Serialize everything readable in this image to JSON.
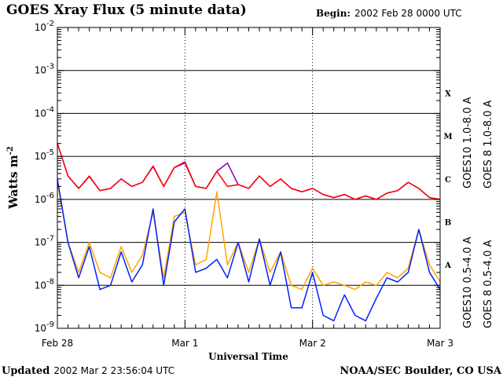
{
  "header": {
    "title": "GOES Xray Flux (5 minute data)",
    "begin_label": "Begin:",
    "begin_value": "2002 Feb 28 0000 UTC"
  },
  "footer": {
    "updated_label": "Updated",
    "updated_value": "2002 Mar  2 23:56:04 UTC",
    "credit": "NOAA/SEC Boulder, CO USA"
  },
  "colors": {
    "goes8_long": "#ff0000",
    "goes10_long": "#8000c0",
    "goes10_short": "#ffa500",
    "goes8_short": "#0020ff"
  },
  "chart_data": {
    "type": "line",
    "title": "GOES Xray Flux (5 minute data)",
    "xlabel": "Universal Time",
    "ylabel": "Watts m-2",
    "ylabel_base": "Watts m",
    "ylabel_exp": "-2",
    "yscale": "log",
    "ylim": [
      1e-09,
      0.01
    ],
    "yticks": [
      {
        "base": "10",
        "exp": "-2",
        "value": 0.01
      },
      {
        "base": "10",
        "exp": "-3",
        "value": 0.001
      },
      {
        "base": "10",
        "exp": "-4",
        "value": 0.0001
      },
      {
        "base": "10",
        "exp": "-5",
        "value": 1e-05
      },
      {
        "base": "10",
        "exp": "-6",
        "value": 1e-06
      },
      {
        "base": "10",
        "exp": "-7",
        "value": 1e-07
      },
      {
        "base": "10",
        "exp": "-8",
        "value": 1e-08
      },
      {
        "base": "10",
        "exp": "-9",
        "value": 1e-09
      }
    ],
    "xlim_hours": [
      0,
      72
    ],
    "xticks": [
      {
        "label": "Feb 28",
        "hour": 0
      },
      {
        "label": "Mar 1",
        "hour": 24
      },
      {
        "label": "Mar 2",
        "hour": 48
      },
      {
        "label": "Mar 3",
        "hour": 72
      }
    ],
    "flare_classes": [
      {
        "label": "X",
        "value": 0.0003
      },
      {
        "label": "M",
        "value": 3e-05
      },
      {
        "label": "C",
        "value": 3e-06
      },
      {
        "label": "B",
        "value": 3e-07
      },
      {
        "label": "A",
        "value": 3e-08
      }
    ],
    "grid": "horizontal at decades",
    "x_hours": [
      0,
      2,
      4,
      6,
      8,
      10,
      12,
      14,
      16,
      18,
      20,
      22,
      24,
      26,
      28,
      30,
      32,
      34,
      36,
      38,
      40,
      42,
      44,
      46,
      48,
      50,
      52,
      54,
      56,
      58,
      60,
      62,
      64,
      66,
      68,
      70,
      72
    ],
    "series": [
      {
        "name": "GOES 8 1.0-8.0 A",
        "color": "#ff0000",
        "values": [
          2e-05,
          3.5e-06,
          1.8e-06,
          3.5e-06,
          1.6e-06,
          1.8e-06,
          3e-06,
          2e-06,
          2.5e-06,
          6e-06,
          2e-06,
          5.5e-06,
          7.5e-06,
          2e-06,
          1.8e-06,
          4.5e-06,
          2e-06,
          2.2e-06,
          1.8e-06,
          3.5e-06,
          2e-06,
          3e-06,
          1.8e-06,
          1.5e-06,
          1.8e-06,
          1.3e-06,
          1.1e-06,
          1.3e-06,
          1e-06,
          1.2e-06,
          1e-06,
          1.4e-06,
          1.6e-06,
          2.5e-06,
          1.8e-06,
          1.1e-06,
          1e-06
        ]
      },
      {
        "name": "GOES10 1.0-8.0 A",
        "color": "#8000c0",
        "values": [
          2e-05,
          3.5e-06,
          1.8e-06,
          3.4e-06,
          1.6e-06,
          1.8e-06,
          3e-06,
          2e-06,
          2.5e-06,
          5.8e-06,
          2e-06,
          5.5e-06,
          7e-06,
          2e-06,
          1.8e-06,
          4.5e-06,
          7e-06,
          2.2e-06,
          1.8e-06,
          3.5e-06,
          2e-06,
          3e-06,
          1.8e-06,
          1.5e-06,
          1.8e-06,
          1.3e-06,
          1.1e-06,
          1.3e-06,
          1e-06,
          1.2e-06,
          1e-06,
          1.4e-06,
          1.6e-06,
          2.5e-06,
          1.8e-06,
          1.1e-06,
          1e-06
        ]
      },
      {
        "name": "GOES10 0.5-4.0 A",
        "color": "#ffa500",
        "values": [
          2.5e-06,
          1e-07,
          2e-08,
          1e-07,
          2e-08,
          1.5e-08,
          8e-08,
          2e-08,
          5e-08,
          5e-07,
          1.5e-08,
          4e-07,
          5e-07,
          3e-08,
          4e-08,
          1.5e-06,
          3e-08,
          1e-07,
          2e-08,
          1.2e-07,
          2e-08,
          6e-08,
          1e-08,
          8e-09,
          2.5e-08,
          1e-08,
          1.2e-08,
          1e-08,
          8e-09,
          1.2e-08,
          1e-08,
          2e-08,
          1.5e-08,
          2.5e-08,
          2e-07,
          3e-08,
          1.2e-08
        ]
      },
      {
        "name": "GOES 8 0.5-4.0 A",
        "color": "#0020ff",
        "values": [
          3e-06,
          1e-07,
          1.5e-08,
          8e-08,
          8e-09,
          1e-08,
          6e-08,
          1.2e-08,
          3e-08,
          6e-07,
          1e-08,
          3e-07,
          6e-07,
          2e-08,
          2.5e-08,
          4e-08,
          1.5e-08,
          1e-07,
          1.2e-08,
          1.2e-07,
          1e-08,
          6e-08,
          3e-09,
          3e-09,
          2e-08,
          2e-09,
          1.5e-09,
          6e-09,
          2e-09,
          1.5e-09,
          5e-09,
          1.5e-08,
          1.2e-08,
          2e-08,
          2e-07,
          2e-08,
          8e-09
        ]
      }
    ]
  }
}
